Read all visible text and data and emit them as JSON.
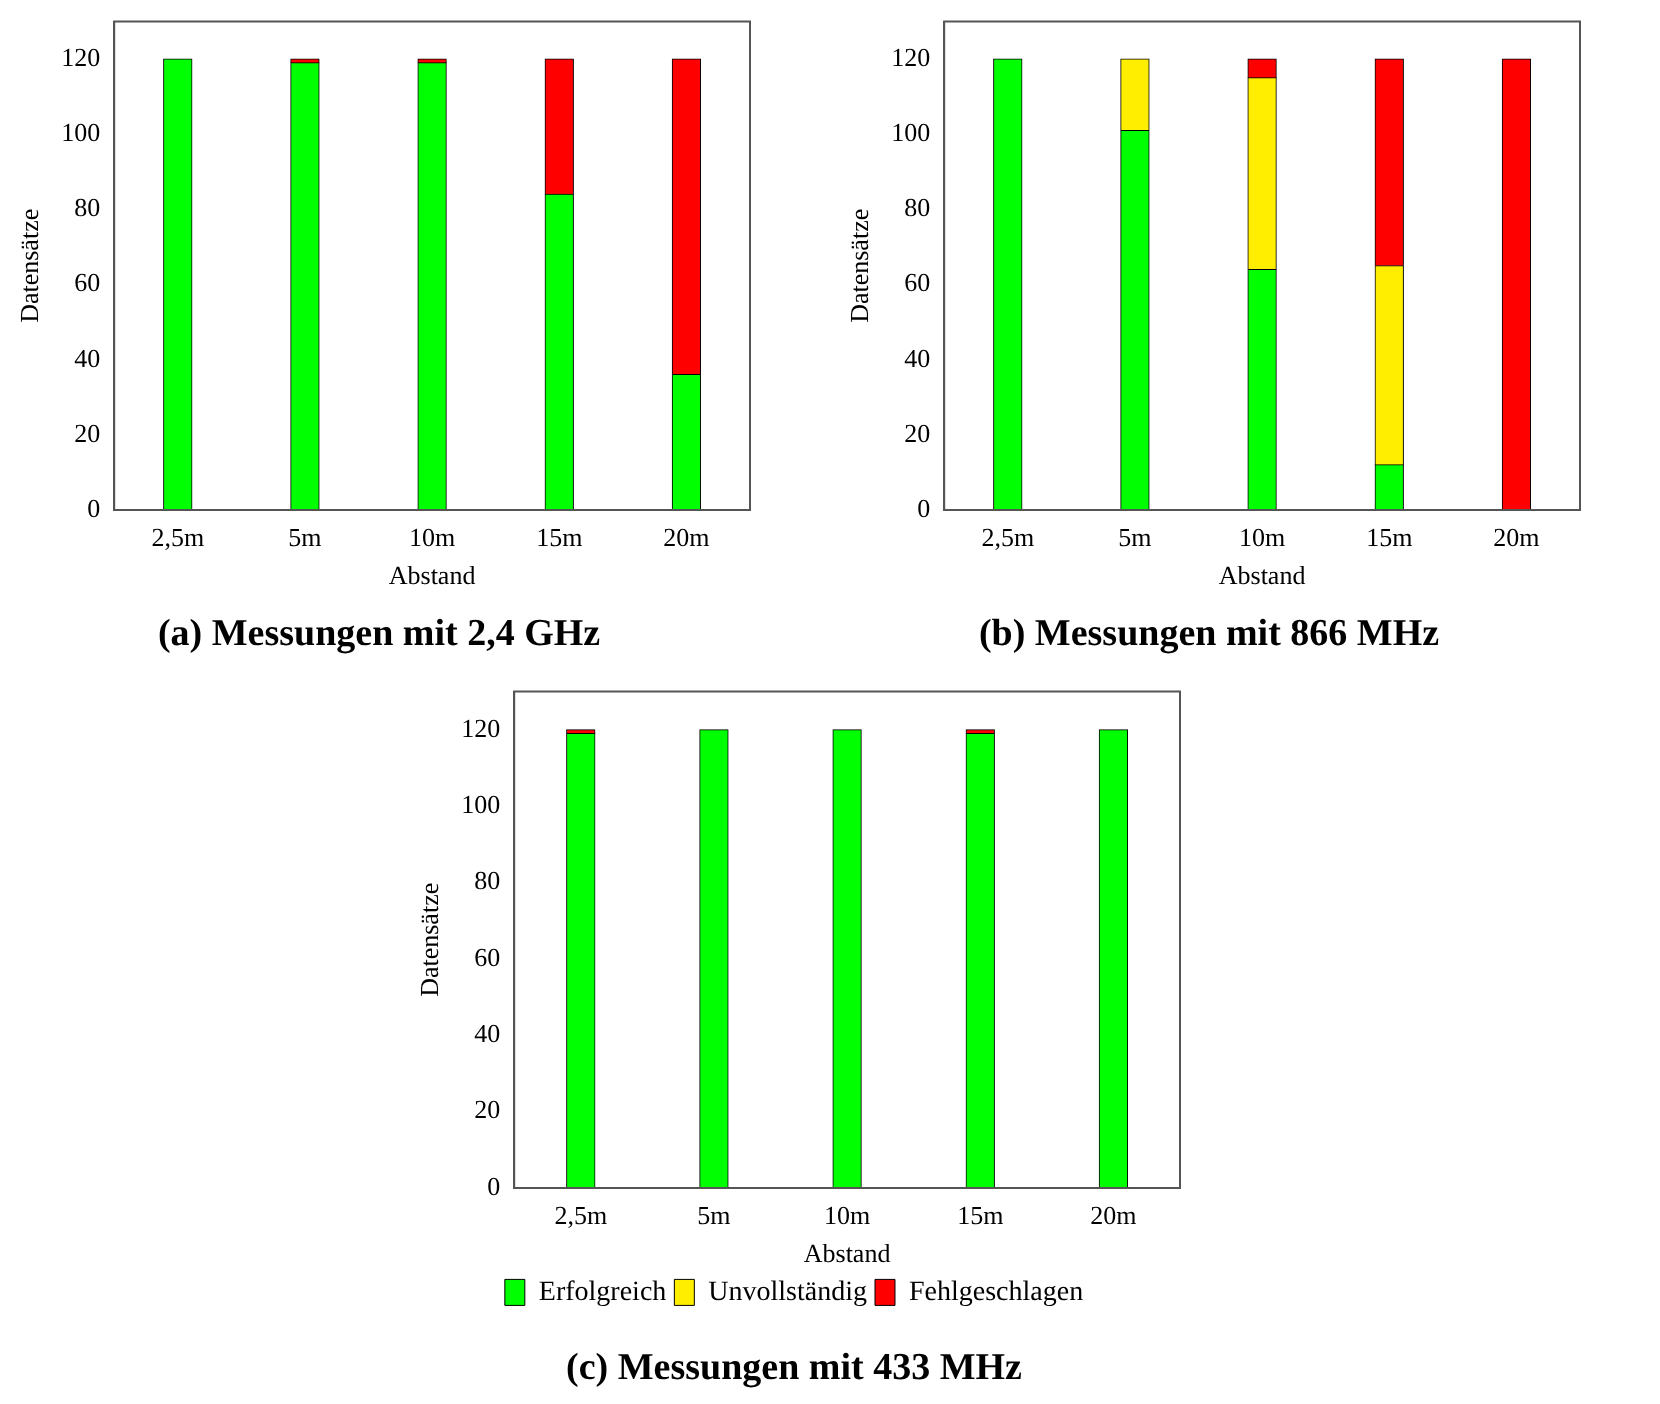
{
  "chart_data": [
    {
      "type": "bar",
      "title": "(a) Messungen mit 2,4 GHz",
      "xlabel": "Abstand",
      "ylabel": "Datensätze",
      "categories": [
        "2,5m",
        "5m",
        "10m",
        "15m",
        "20m"
      ],
      "stacked": true,
      "ylim": [
        0,
        130
      ],
      "yticks": [
        0,
        20,
        40,
        60,
        80,
        100,
        120
      ],
      "grid": false,
      "legend": false,
      "series": [
        {
          "color": "#00ff00",
          "values": [
            120,
            119,
            119,
            84,
            36
          ]
        },
        {
          "color": "#ffee00",
          "values": [
            0,
            0,
            0,
            0,
            0
          ]
        },
        {
          "color": "#ff0000",
          "values": [
            0,
            1,
            1,
            36,
            84
          ]
        }
      ]
    },
    {
      "type": "bar",
      "title": "(b) Messungen mit 866 MHz",
      "xlabel": "Abstand",
      "ylabel": "Datensätze",
      "categories": [
        "2,5m",
        "5m",
        "10m",
        "15m",
        "20m"
      ],
      "stacked": true,
      "ylim": [
        0,
        130
      ],
      "yticks": [
        0,
        20,
        40,
        60,
        80,
        100,
        120
      ],
      "grid": false,
      "legend": false,
      "series": [
        {
          "color": "#00ff00",
          "values": [
            120,
            101,
            64,
            12,
            0
          ]
        },
        {
          "color": "#ffee00",
          "values": [
            0,
            19,
            51,
            53,
            0
          ]
        },
        {
          "color": "#ff0000",
          "values": [
            0,
            0,
            5,
            55,
            120
          ]
        }
      ]
    },
    {
      "type": "bar",
      "title": "(c) Messungen mit 433 MHz",
      "xlabel": "Abstand",
      "ylabel": "Datensätze",
      "categories": [
        "2,5m",
        "5m",
        "10m",
        "15m",
        "20m"
      ],
      "stacked": true,
      "ylim": [
        0,
        130
      ],
      "yticks": [
        0,
        20,
        40,
        60,
        80,
        100,
        120
      ],
      "grid": false,
      "legend": "bottom",
      "series": [
        {
          "name": "Erfolgreich",
          "color": "#00ff00",
          "values": [
            119,
            120,
            120,
            119,
            120
          ]
        },
        {
          "name": "Unvollständig",
          "color": "#ffee00",
          "values": [
            0,
            0,
            0,
            0,
            0
          ]
        },
        {
          "name": "Fehlgeschlagen",
          "color": "#ff0000",
          "values": [
            1,
            0,
            0,
            1,
            0
          ]
        }
      ]
    }
  ]
}
